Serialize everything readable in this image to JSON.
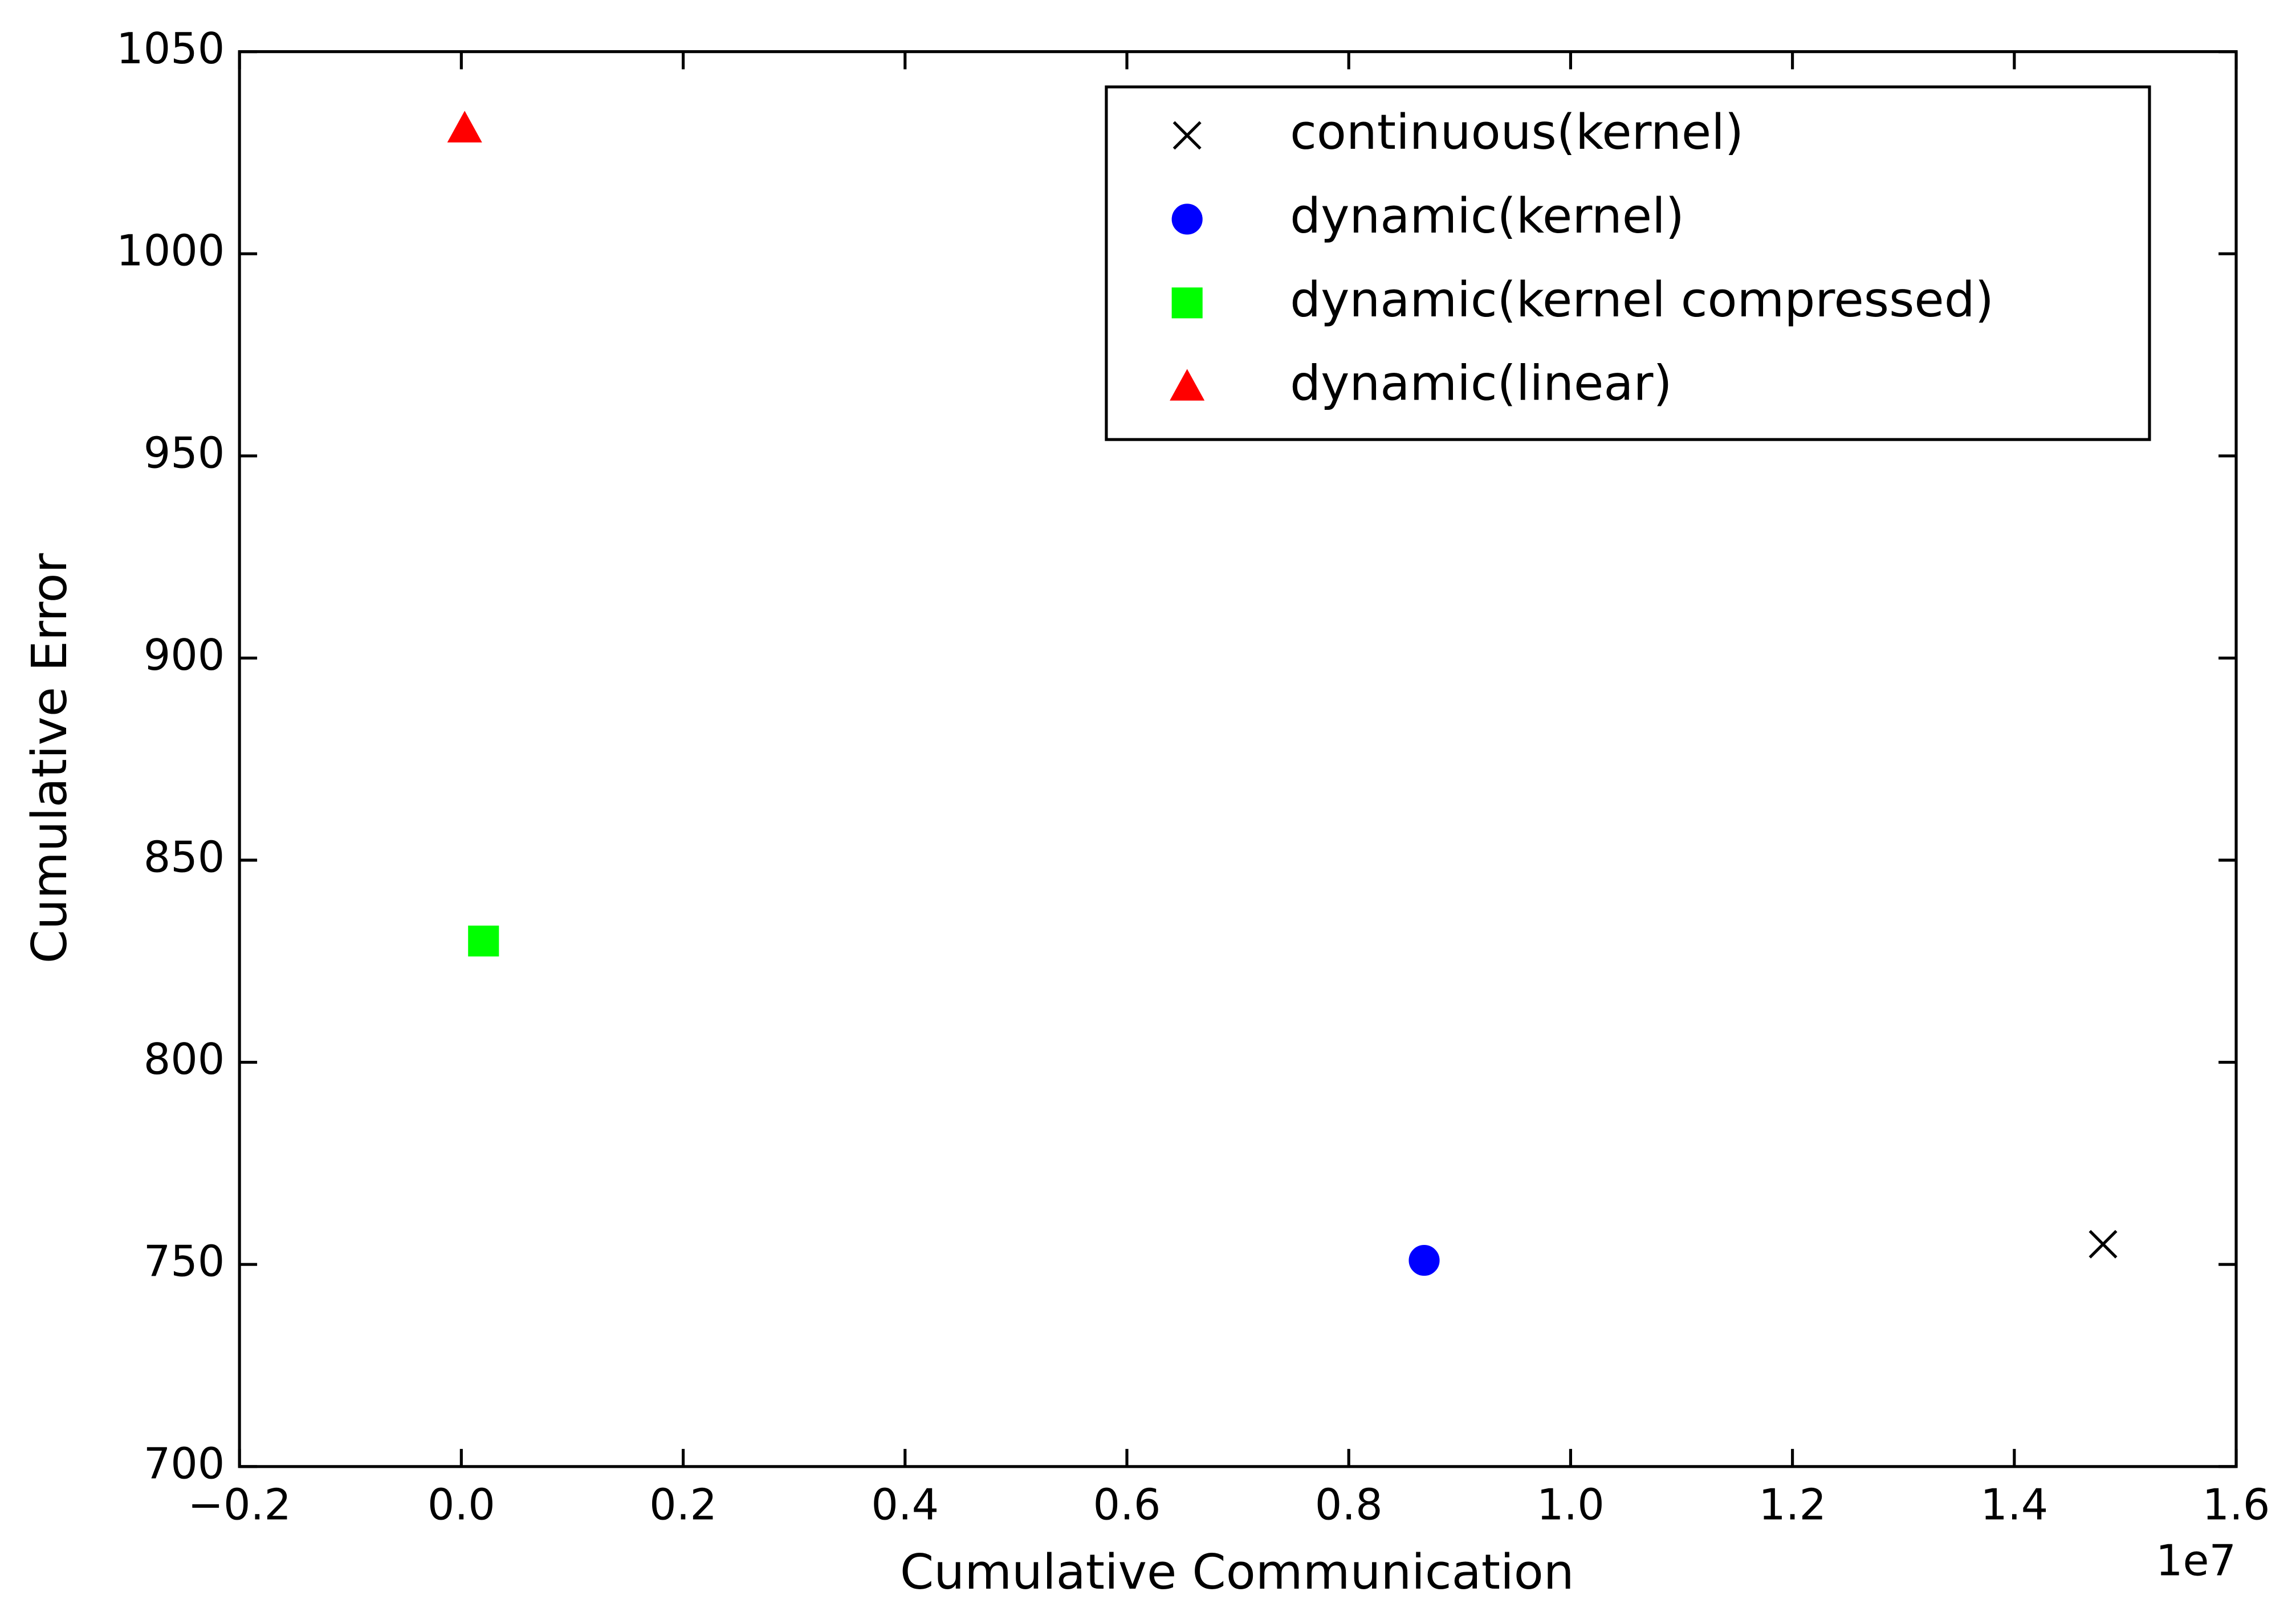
{
  "chart_data": {
    "type": "scatter",
    "x_label": "Cumulative Communication",
    "y_label": "Cumulative Error",
    "x_offset_label": "1e7",
    "xlim": [
      -0.2,
      1.6
    ],
    "ylim": [
      700,
      1050
    ],
    "xticks": [
      {
        "value": -0.2,
        "label": "−0.2"
      },
      {
        "value": 0,
        "label": "0.0"
      },
      0.2,
      0.4,
      0.6,
      0.8,
      {
        "value": 1,
        "label": "1.0"
      },
      1.2,
      1.4,
      1.6
    ],
    "yticks": [
      700,
      750,
      800,
      850,
      900,
      950,
      1000,
      1050
    ],
    "legend": "upper right",
    "series": [
      {
        "name": "continuous(kernel)",
        "color": "#000000",
        "marker": "x",
        "x": [
          1.48
        ],
        "values": [
          755
        ]
      },
      {
        "name": "dynamic(kernel)",
        "color": "#0000ff",
        "marker": "o",
        "x": [
          0.868
        ],
        "values": [
          751
        ]
      },
      {
        "name": "dynamic(kernel compressed)",
        "color": "#00ff00",
        "marker": "s",
        "x": [
          0.02
        ],
        "values": [
          830
        ]
      },
      {
        "name": "dynamic(linear)",
        "color": "#ff0000",
        "marker": "^",
        "x": [
          0.003
        ],
        "values": [
          1031
        ]
      }
    ]
  }
}
